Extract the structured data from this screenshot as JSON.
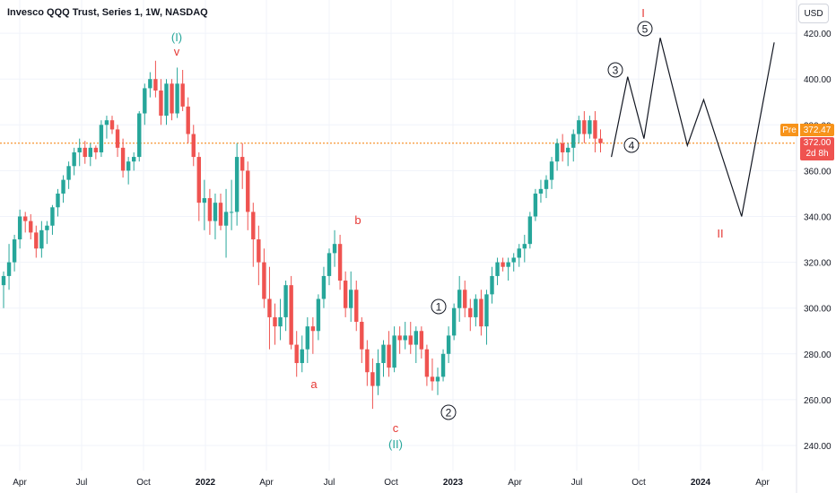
{
  "header": {
    "title": "Invesco QQQ Trust, Series 1, 1W, NASDAQ",
    "currency": "USD"
  },
  "price_labels": {
    "pre_label": "Pre",
    "pre_price": "372.47",
    "last_price": "372.00",
    "countdown": "2d 8h"
  },
  "colors": {
    "up": "#26a69a",
    "down": "#ef5350",
    "wave_red": "#e53935",
    "wave_teal": "#26a69a",
    "dotted": "#f57c00",
    "projection": "#131722"
  },
  "chart_data": {
    "type": "candlestick",
    "y_axis": {
      "ticks": [
        240,
        260,
        280,
        300,
        320,
        340,
        360,
        380,
        400,
        420
      ],
      "range": [
        228,
        428
      ]
    },
    "x_axis": {
      "ticks": [
        "Apr",
        "Jul",
        "Oct",
        "2022",
        "Apr",
        "Jul",
        "Oct",
        "2023",
        "Apr",
        "Jul",
        "Oct",
        "2024",
        "Apr"
      ]
    },
    "current_price_line": 372.0,
    "candles": [
      {
        "o": 310,
        "h": 316,
        "l": 300,
        "c": 314
      },
      {
        "o": 314,
        "h": 328,
        "l": 308,
        "c": 320
      },
      {
        "o": 320,
        "h": 332,
        "l": 316,
        "c": 330
      },
      {
        "o": 330,
        "h": 343,
        "l": 326,
        "c": 340
      },
      {
        "o": 340,
        "h": 342,
        "l": 333,
        "c": 338
      },
      {
        "o": 338,
        "h": 341,
        "l": 330,
        "c": 333
      },
      {
        "o": 333,
        "h": 336,
        "l": 322,
        "c": 326
      },
      {
        "o": 326,
        "h": 338,
        "l": 322,
        "c": 334
      },
      {
        "o": 334,
        "h": 338,
        "l": 328,
        "c": 336
      },
      {
        "o": 336,
        "h": 345,
        "l": 332,
        "c": 344
      },
      {
        "o": 344,
        "h": 352,
        "l": 340,
        "c": 350
      },
      {
        "o": 350,
        "h": 358,
        "l": 346,
        "c": 356
      },
      {
        "o": 356,
        "h": 364,
        "l": 352,
        "c": 362
      },
      {
        "o": 362,
        "h": 370,
        "l": 358,
        "c": 368
      },
      {
        "o": 368,
        "h": 374,
        "l": 362,
        "c": 370
      },
      {
        "o": 370,
        "h": 373,
        "l": 363,
        "c": 366
      },
      {
        "o": 366,
        "h": 372,
        "l": 362,
        "c": 370
      },
      {
        "o": 370,
        "h": 371,
        "l": 365,
        "c": 368
      },
      {
        "o": 368,
        "h": 382,
        "l": 366,
        "c": 380
      },
      {
        "o": 380,
        "h": 384,
        "l": 374,
        "c": 382
      },
      {
        "o": 382,
        "h": 384,
        "l": 376,
        "c": 378
      },
      {
        "o": 378,
        "h": 380,
        "l": 366,
        "c": 370
      },
      {
        "o": 370,
        "h": 374,
        "l": 357,
        "c": 360
      },
      {
        "o": 360,
        "h": 366,
        "l": 354,
        "c": 364
      },
      {
        "o": 364,
        "h": 368,
        "l": 360,
        "c": 366
      },
      {
        "o": 366,
        "h": 386,
        "l": 364,
        "c": 385
      },
      {
        "o": 385,
        "h": 398,
        "l": 380,
        "c": 396
      },
      {
        "o": 396,
        "h": 403,
        "l": 392,
        "c": 400
      },
      {
        "o": 400,
        "h": 408,
        "l": 392,
        "c": 395
      },
      {
        "o": 395,
        "h": 400,
        "l": 380,
        "c": 384
      },
      {
        "o": 384,
        "h": 400,
        "l": 380,
        "c": 398
      },
      {
        "o": 398,
        "h": 400,
        "l": 382,
        "c": 385
      },
      {
        "o": 385,
        "h": 405,
        "l": 383,
        "c": 398
      },
      {
        "o": 398,
        "h": 404,
        "l": 386,
        "c": 388
      },
      {
        "o": 388,
        "h": 392,
        "l": 372,
        "c": 376
      },
      {
        "o": 376,
        "h": 380,
        "l": 362,
        "c": 366
      },
      {
        "o": 366,
        "h": 368,
        "l": 338,
        "c": 346
      },
      {
        "o": 346,
        "h": 356,
        "l": 334,
        "c": 348
      },
      {
        "o": 348,
        "h": 352,
        "l": 332,
        "c": 338
      },
      {
        "o": 338,
        "h": 350,
        "l": 330,
        "c": 346
      },
      {
        "o": 346,
        "h": 350,
        "l": 334,
        "c": 336
      },
      {
        "o": 336,
        "h": 352,
        "l": 322,
        "c": 342
      },
      {
        "o": 342,
        "h": 356,
        "l": 334,
        "c": 342
      },
      {
        "o": 342,
        "h": 372,
        "l": 336,
        "c": 366
      },
      {
        "o": 366,
        "h": 372,
        "l": 352,
        "c": 360
      },
      {
        "o": 360,
        "h": 364,
        "l": 334,
        "c": 342
      },
      {
        "o": 342,
        "h": 346,
        "l": 318,
        "c": 330
      },
      {
        "o": 330,
        "h": 336,
        "l": 310,
        "c": 320
      },
      {
        "o": 320,
        "h": 326,
        "l": 300,
        "c": 304
      },
      {
        "o": 304,
        "h": 318,
        "l": 282,
        "c": 296
      },
      {
        "o": 296,
        "h": 302,
        "l": 284,
        "c": 292
      },
      {
        "o": 292,
        "h": 304,
        "l": 286,
        "c": 296
      },
      {
        "o": 296,
        "h": 312,
        "l": 290,
        "c": 310
      },
      {
        "o": 310,
        "h": 314,
        "l": 282,
        "c": 284
      },
      {
        "o": 284,
        "h": 290,
        "l": 270,
        "c": 276
      },
      {
        "o": 276,
        "h": 288,
        "l": 272,
        "c": 282
      },
      {
        "o": 282,
        "h": 296,
        "l": 276,
        "c": 292
      },
      {
        "o": 292,
        "h": 296,
        "l": 280,
        "c": 290
      },
      {
        "o": 290,
        "h": 306,
        "l": 286,
        "c": 304
      },
      {
        "o": 304,
        "h": 318,
        "l": 300,
        "c": 314
      },
      {
        "o": 314,
        "h": 326,
        "l": 310,
        "c": 324
      },
      {
        "o": 324,
        "h": 334,
        "l": 318,
        "c": 328
      },
      {
        "o": 328,
        "h": 332,
        "l": 308,
        "c": 312
      },
      {
        "o": 312,
        "h": 316,
        "l": 296,
        "c": 300
      },
      {
        "o": 300,
        "h": 316,
        "l": 294,
        "c": 308
      },
      {
        "o": 308,
        "h": 312,
        "l": 290,
        "c": 294
      },
      {
        "o": 294,
        "h": 296,
        "l": 276,
        "c": 282
      },
      {
        "o": 282,
        "h": 286,
        "l": 266,
        "c": 272
      },
      {
        "o": 272,
        "h": 278,
        "l": 256,
        "c": 266
      },
      {
        "o": 266,
        "h": 282,
        "l": 262,
        "c": 276
      },
      {
        "o": 276,
        "h": 286,
        "l": 270,
        "c": 284
      },
      {
        "o": 284,
        "h": 290,
        "l": 270,
        "c": 274
      },
      {
        "o": 274,
        "h": 292,
        "l": 272,
        "c": 288
      },
      {
        "o": 288,
        "h": 292,
        "l": 280,
        "c": 286
      },
      {
        "o": 286,
        "h": 294,
        "l": 282,
        "c": 288
      },
      {
        "o": 288,
        "h": 294,
        "l": 280,
        "c": 284
      },
      {
        "o": 284,
        "h": 292,
        "l": 276,
        "c": 290
      },
      {
        "o": 290,
        "h": 292,
        "l": 278,
        "c": 282
      },
      {
        "o": 282,
        "h": 284,
        "l": 266,
        "c": 270
      },
      {
        "o": 270,
        "h": 278,
        "l": 264,
        "c": 268
      },
      {
        "o": 268,
        "h": 274,
        "l": 262,
        "c": 270
      },
      {
        "o": 270,
        "h": 282,
        "l": 268,
        "c": 280
      },
      {
        "o": 280,
        "h": 292,
        "l": 276,
        "c": 288
      },
      {
        "o": 288,
        "h": 302,
        "l": 286,
        "c": 300
      },
      {
        "o": 300,
        "h": 314,
        "l": 294,
        "c": 308
      },
      {
        "o": 308,
        "h": 312,
        "l": 296,
        "c": 300
      },
      {
        "o": 300,
        "h": 304,
        "l": 290,
        "c": 296
      },
      {
        "o": 296,
        "h": 306,
        "l": 292,
        "c": 304
      },
      {
        "o": 304,
        "h": 308,
        "l": 288,
        "c": 292
      },
      {
        "o": 292,
        "h": 308,
        "l": 284,
        "c": 306
      },
      {
        "o": 306,
        "h": 318,
        "l": 302,
        "c": 314
      },
      {
        "o": 314,
        "h": 322,
        "l": 310,
        "c": 320
      },
      {
        "o": 320,
        "h": 322,
        "l": 316,
        "c": 318
      },
      {
        "o": 318,
        "h": 322,
        "l": 312,
        "c": 320
      },
      {
        "o": 320,
        "h": 324,
        "l": 316,
        "c": 322
      },
      {
        "o": 322,
        "h": 328,
        "l": 318,
        "c": 326
      },
      {
        "o": 326,
        "h": 332,
        "l": 320,
        "c": 328
      },
      {
        "o": 328,
        "h": 342,
        "l": 326,
        "c": 340
      },
      {
        "o": 340,
        "h": 352,
        "l": 338,
        "c": 350
      },
      {
        "o": 350,
        "h": 356,
        "l": 346,
        "c": 352
      },
      {
        "o": 352,
        "h": 358,
        "l": 348,
        "c": 356
      },
      {
        "o": 356,
        "h": 366,
        "l": 352,
        "c": 364
      },
      {
        "o": 364,
        "h": 374,
        "l": 360,
        "c": 372
      },
      {
        "o": 372,
        "h": 376,
        "l": 364,
        "c": 368
      },
      {
        "o": 368,
        "h": 372,
        "l": 362,
        "c": 370
      },
      {
        "o": 370,
        "h": 378,
        "l": 364,
        "c": 376
      },
      {
        "o": 376,
        "h": 384,
        "l": 372,
        "c": 382
      },
      {
        "o": 382,
        "h": 386,
        "l": 372,
        "c": 376
      },
      {
        "o": 376,
        "h": 384,
        "l": 374,
        "c": 382
      },
      {
        "o": 382,
        "h": 386,
        "l": 368,
        "c": 374
      },
      {
        "o": 374,
        "h": 378,
        "l": 368,
        "c": 372
      }
    ],
    "projection": [
      {
        "week": 112,
        "price": 366
      },
      {
        "week": 115,
        "price": 401
      },
      {
        "week": 118,
        "price": 374
      },
      {
        "week": 121,
        "price": 418
      },
      {
        "week": 126,
        "price": 371
      },
      {
        "week": 129,
        "price": 391
      },
      {
        "week": 136,
        "price": 340
      },
      {
        "week": 142,
        "price": 416
      }
    ],
    "annotations": {
      "wave_labels": [
        {
          "text": "(I)",
          "color": "teal"
        },
        {
          "text": "v",
          "color": "red"
        },
        {
          "text": "b",
          "color": "red"
        },
        {
          "text": "a",
          "color": "red"
        },
        {
          "text": "c",
          "color": "red"
        },
        {
          "text": "(II)",
          "color": "teal"
        },
        {
          "text": "I",
          "color": "red"
        },
        {
          "text": "II",
          "color": "red"
        }
      ],
      "circled_labels": [
        "1",
        "2",
        "3",
        "4",
        "5"
      ]
    }
  }
}
